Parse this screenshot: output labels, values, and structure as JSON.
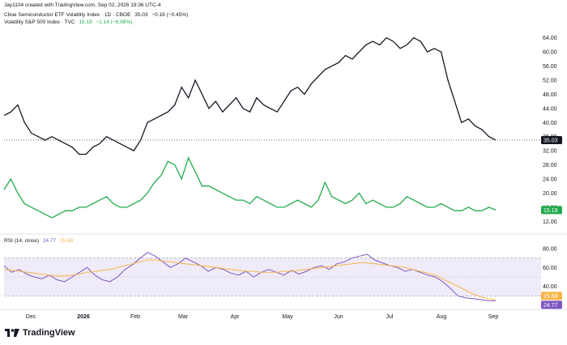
{
  "header": {
    "attribution": "Jay1104 created with TradingView.com, Sep 02, 2026 19:36 UTC-4",
    "series1": {
      "name": "Cboe Semiconductor ETF Volatility Index · 1D · CBOE",
      "price": "35.03",
      "change": "−0.16 (−0.45%)",
      "color": "#131722"
    },
    "series2": {
      "name": "Volatility S&P 500 Index · TVC",
      "price": "15.19",
      "change": "−1.14 (−6.98%)",
      "color": "#22ab4e"
    },
    "rsi": {
      "label": "RSI (14, close)",
      "value": "24.77",
      "ma": "25.68",
      "color": "#7e57c2",
      "ma_color": "#f7b548"
    }
  },
  "brand": {
    "name": "TradingView"
  },
  "chart_data": [
    {
      "type": "line",
      "y_ticks": [
        "64.00",
        "60.00",
        "56.00",
        "52.00",
        "48.00",
        "44.00",
        "40.00",
        "36.00",
        "32.00",
        "28.00",
        "24.00",
        "20.00",
        "16.00",
        "12.00"
      ],
      "ylim": [
        10,
        66
      ],
      "x_ticks": [
        "Dec",
        "2026",
        "Feb",
        "Mar",
        "Apr",
        "May",
        "Jun",
        "Jul",
        "Aug",
        "Sep"
      ],
      "last_price_badges": [
        {
          "series": "semis",
          "value": "35.03",
          "bg": "#131722"
        },
        {
          "series": "vix",
          "value": "15.19",
          "bg": "#22ab4e"
        }
      ],
      "series": [
        {
          "key": "semis",
          "color": "#131722",
          "values": [
            42,
            43,
            45,
            40,
            37,
            36,
            35,
            36,
            35,
            34,
            33,
            31,
            31,
            33,
            34,
            36,
            35,
            34,
            33,
            32,
            35,
            40,
            41,
            42,
            43,
            45,
            50,
            47,
            52,
            48,
            44,
            46,
            43,
            45,
            47,
            44,
            43,
            47,
            45,
            44,
            43,
            46,
            49,
            50,
            48,
            51,
            53,
            55,
            56,
            57,
            59,
            58,
            60,
            62,
            63,
            62,
            64,
            63,
            61,
            62,
            64,
            63,
            60,
            61,
            60,
            52,
            46,
            40,
            41,
            39,
            38,
            36,
            35.03
          ]
        },
        {
          "key": "vix",
          "color": "#22ab4e",
          "values": [
            21,
            24,
            20,
            17,
            16,
            15,
            14,
            13,
            14,
            15,
            15,
            16,
            16,
            17,
            18,
            19,
            17,
            16,
            16,
            17,
            18,
            20,
            23,
            25,
            29,
            28,
            24,
            30,
            26,
            22,
            22,
            21,
            20,
            19,
            18,
            18,
            17,
            19,
            18,
            17,
            16,
            16,
            17,
            18,
            17,
            16,
            18,
            23,
            19,
            18,
            17,
            18,
            20,
            17,
            18,
            17,
            16,
            16,
            17,
            19,
            18,
            17,
            16,
            16,
            17,
            16,
            15,
            15,
            16,
            15,
            15,
            16,
            15.19
          ]
        }
      ]
    },
    {
      "type": "line",
      "title": "RSI (14, close)",
      "y_ticks": [
        "80.00",
        "60.00",
        "40.00",
        "20.00"
      ],
      "ylim": [
        20,
        80
      ],
      "bands": [
        30,
        70
      ],
      "last_value_badges": [
        {
          "series": "rsi_ma",
          "value": "25.68",
          "bg": "#f7b548"
        },
        {
          "series": "rsi",
          "value": "24.77",
          "bg": "#7e57c2"
        }
      ],
      "series": [
        {
          "key": "rsi",
          "color": "#7e57c2",
          "values": [
            62,
            55,
            58,
            53,
            50,
            48,
            52,
            47,
            45,
            50,
            55,
            60,
            52,
            47,
            45,
            50,
            58,
            63,
            70,
            76,
            72,
            66,
            60,
            64,
            70,
            66,
            62,
            56,
            60,
            58,
            54,
            52,
            56,
            50,
            55,
            58,
            55,
            52,
            57,
            53,
            56,
            60,
            62,
            58,
            64,
            66,
            70,
            72,
            74,
            68,
            65,
            62,
            60,
            56,
            58,
            55,
            52,
            50,
            45,
            38,
            30,
            28,
            27,
            26,
            25,
            24.77
          ]
        },
        {
          "key": "rsi_ma",
          "color": "#f7b548",
          "values": [
            58,
            57,
            56,
            55,
            54,
            53,
            52,
            51,
            51,
            52,
            53,
            55,
            56,
            57,
            58,
            60,
            62,
            64,
            66,
            68,
            68,
            67,
            66,
            65,
            64,
            63,
            62,
            61,
            60,
            59,
            58,
            57,
            56,
            56,
            55,
            55,
            55,
            56,
            56,
            57,
            58,
            59,
            60,
            61,
            62,
            63,
            64,
            65,
            65,
            64,
            63,
            62,
            61,
            60,
            58,
            56,
            54,
            52,
            48,
            44,
            40,
            36,
            32,
            29,
            27,
            25.68
          ]
        }
      ]
    }
  ]
}
